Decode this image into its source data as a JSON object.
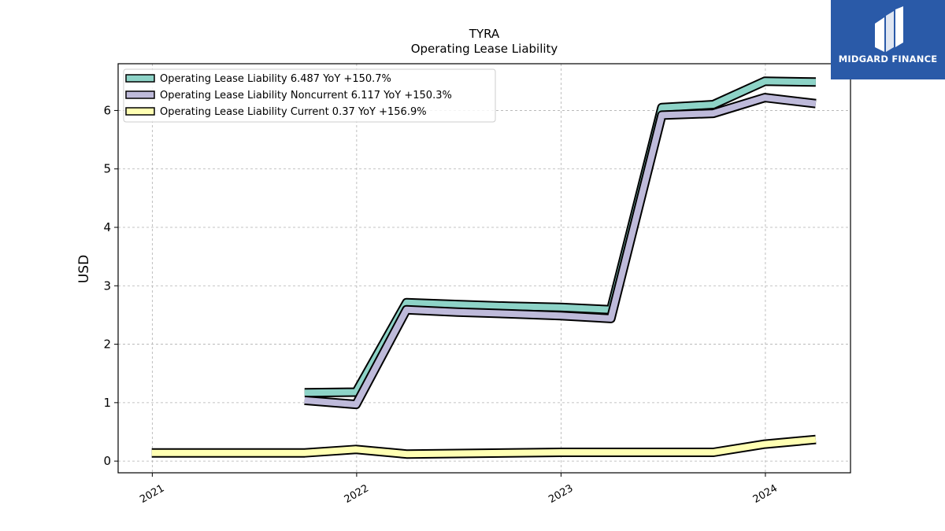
{
  "logo": {
    "text": "MIDGARD FINANCE"
  },
  "chart_data": {
    "type": "line",
    "title": "TYRA",
    "subtitle": "Operating Lease Liability",
    "xlabel": "",
    "ylabel": "USD",
    "x_ticks": [
      "2021",
      "2022",
      "2023",
      "2024"
    ],
    "xlim": [
      "2020-11-01",
      "2024-06-01"
    ],
    "ylim": [
      -0.2,
      6.8
    ],
    "y_ticks": [
      0,
      1,
      2,
      3,
      4,
      5,
      6
    ],
    "grid": true,
    "legend_position": "top-left",
    "series": [
      {
        "name": "Operating Lease Liability  6.487 YoY +150.7%",
        "color": "#8dd3c7",
        "points": [
          [
            "2021-09-30",
            1.17
          ],
          [
            "2021-12-31",
            1.18
          ],
          [
            "2022-03-31",
            2.71
          ],
          [
            "2022-06-30",
            2.68
          ],
          [
            "2022-09-30",
            2.65
          ],
          [
            "2022-12-31",
            2.63
          ],
          [
            "2023-03-31",
            2.59
          ],
          [
            "2023-06-30",
            6.05
          ],
          [
            "2023-09-30",
            6.1
          ],
          [
            "2023-12-31",
            6.5
          ],
          [
            "2024-03-31",
            6.487
          ]
        ]
      },
      {
        "name": "Operating Lease Liability Noncurrent  6.117 YoY +150.3%",
        "color": "#bebada",
        "points": [
          [
            "2021-09-30",
            1.04
          ],
          [
            "2021-12-31",
            0.97
          ],
          [
            "2022-03-31",
            2.59
          ],
          [
            "2022-06-30",
            2.55
          ],
          [
            "2022-09-30",
            2.52
          ],
          [
            "2022-12-31",
            2.49
          ],
          [
            "2023-03-31",
            2.44
          ],
          [
            "2023-06-30",
            5.92
          ],
          [
            "2023-09-30",
            5.95
          ],
          [
            "2023-12-31",
            6.22
          ],
          [
            "2024-03-31",
            6.117
          ]
        ]
      },
      {
        "name": "Operating Lease Liability Current  0.37 YoY +156.9%",
        "color": "#ffffb3",
        "points": [
          [
            "2020-12-31",
            0.14
          ],
          [
            "2021-03-31",
            0.14
          ],
          [
            "2021-06-30",
            0.14
          ],
          [
            "2021-09-30",
            0.14
          ],
          [
            "2021-12-31",
            0.2
          ],
          [
            "2022-03-31",
            0.12
          ],
          [
            "2022-06-30",
            0.13
          ],
          [
            "2022-09-30",
            0.14
          ],
          [
            "2022-12-31",
            0.15
          ],
          [
            "2023-03-31",
            0.15
          ],
          [
            "2023-06-30",
            0.15
          ],
          [
            "2023-09-30",
            0.15
          ],
          [
            "2023-12-31",
            0.29
          ],
          [
            "2024-03-31",
            0.37
          ]
        ]
      }
    ]
  }
}
